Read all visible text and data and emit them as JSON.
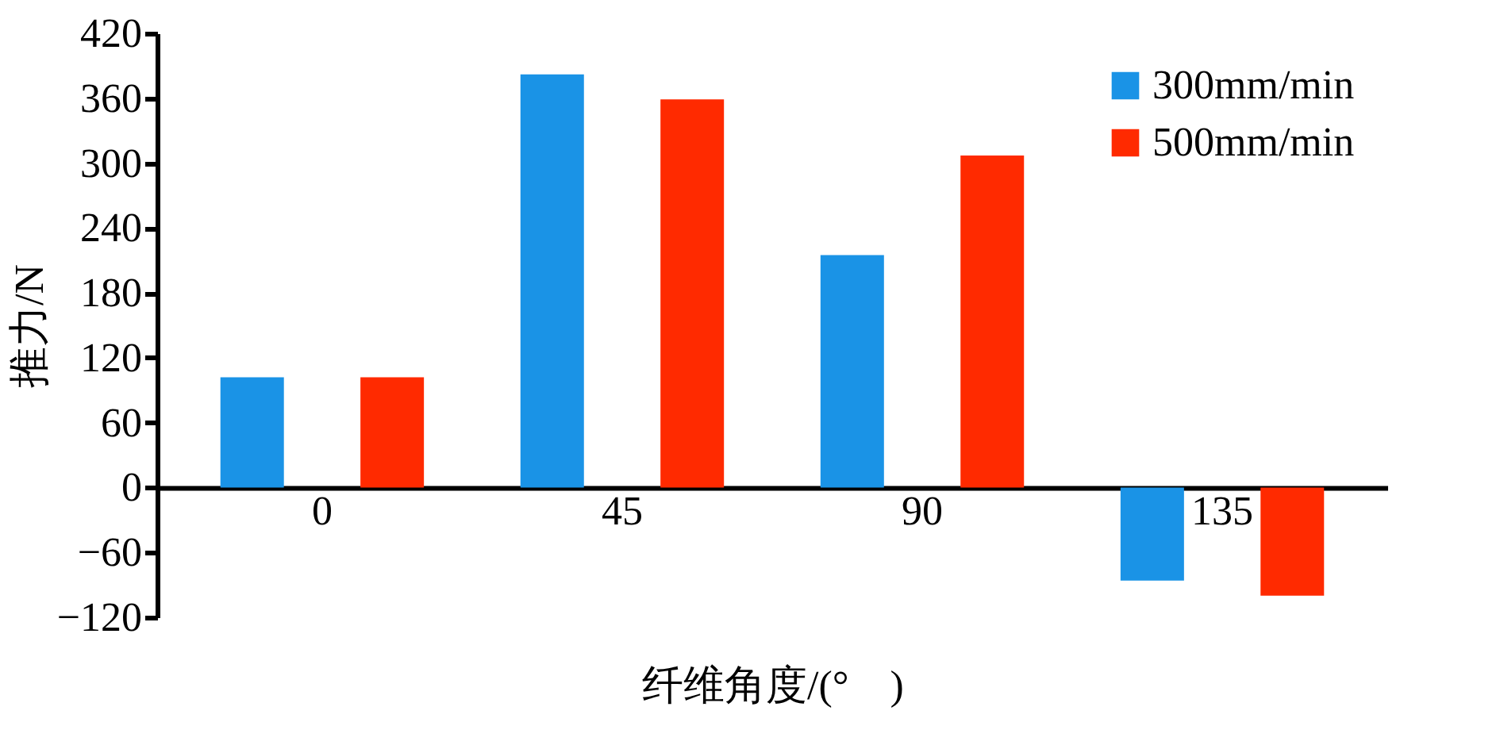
{
  "chart_data": {
    "type": "bar",
    "xlabel": "纤维角度/(°　)",
    "ylabel": "推力/N",
    "categories": [
      "0",
      "45",
      "90",
      "135"
    ],
    "series": [
      {
        "name": "300mm/min",
        "color": "#1a93e6",
        "values": [
          102,
          382,
          215,
          -86
        ]
      },
      {
        "name": "500mm/min",
        "color": "#ff2a00",
        "values": [
          102,
          359,
          307,
          -100
        ]
      }
    ],
    "ylim": [
      -120,
      420
    ],
    "yticks": [
      -120,
      -60,
      0,
      60,
      120,
      180,
      240,
      300,
      360,
      420
    ],
    "grid": false,
    "legend": "top right"
  }
}
